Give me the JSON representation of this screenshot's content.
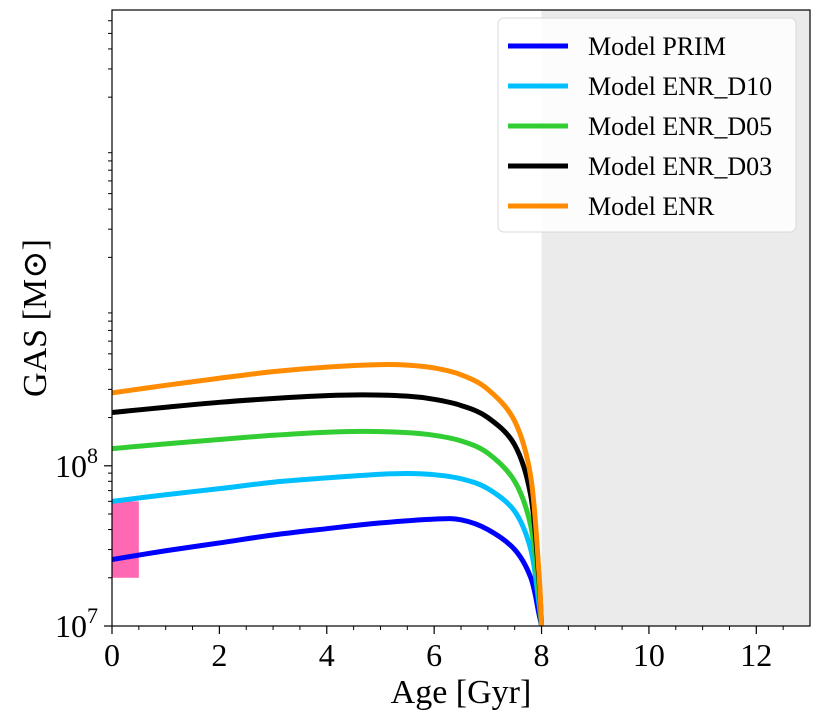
{
  "chart_data": {
    "type": "line",
    "title": "",
    "xlabel": "Age [Gyr]",
    "ylabel": "GAS [M⊙]",
    "yscale": "log",
    "xlim": [
      0,
      13
    ],
    "ylim": [
      10000000,
      70000000000
    ],
    "x_ticks": [
      0,
      2,
      4,
      6,
      8,
      10,
      12
    ],
    "x_tick_labels": [
      "0",
      "2",
      "4",
      "6",
      "8",
      "10",
      "12"
    ],
    "y_ticks": [
      {
        "value": 10000000,
        "base": "10",
        "exp": "7"
      },
      {
        "value": 100000000,
        "base": "10",
        "exp": "8"
      }
    ],
    "legend_position": "top-right",
    "shaded_region": {
      "x_start": 8,
      "x_end": 13,
      "color": "#ebebeb"
    },
    "observed_range": {
      "x_start": 0,
      "x_end": 0.5,
      "y_low": 20000000,
      "y_high": 60000000,
      "color": "#ff69b4"
    },
    "series": [
      {
        "name": "Model PRIM",
        "color": "#0000ff",
        "points": [
          [
            0,
            26000000
          ],
          [
            1,
            29500000
          ],
          [
            2,
            33000000
          ],
          [
            3,
            37000000
          ],
          [
            4,
            40500000
          ],
          [
            5,
            44000000
          ],
          [
            6,
            46500000
          ],
          [
            6.5,
            46000000
          ],
          [
            7,
            40000000
          ],
          [
            7.5,
            30000000
          ],
          [
            7.8,
            20000000
          ],
          [
            7.95,
            12000000
          ],
          [
            8.0,
            10000000
          ]
        ]
      },
      {
        "name": "Model ENR_D10",
        "color": "#00bfff",
        "points": [
          [
            0,
            60000000
          ],
          [
            1,
            66000000
          ],
          [
            2,
            72000000
          ],
          [
            3,
            79000000
          ],
          [
            4,
            84000000
          ],
          [
            5,
            88500000
          ],
          [
            5.5,
            89500000
          ],
          [
            6,
            88000000
          ],
          [
            6.5,
            83000000
          ],
          [
            7,
            72000000
          ],
          [
            7.5,
            52000000
          ],
          [
            7.8,
            30000000
          ],
          [
            7.95,
            14000000
          ],
          [
            8.0,
            10000000
          ]
        ]
      },
      {
        "name": "Model ENR_D05",
        "color": "#32cd32",
        "points": [
          [
            0,
            128000000
          ],
          [
            1,
            137000000
          ],
          [
            2,
            146000000
          ],
          [
            3,
            155000000
          ],
          [
            4,
            162000000
          ],
          [
            4.7,
            164000000
          ],
          [
            5.5,
            161000000
          ],
          [
            6,
            155000000
          ],
          [
            6.5,
            143000000
          ],
          [
            7,
            120000000
          ],
          [
            7.5,
            80000000
          ],
          [
            7.8,
            42000000
          ],
          [
            7.95,
            16000000
          ],
          [
            8.0,
            10000000
          ]
        ]
      },
      {
        "name": "Model ENR_D03",
        "color": "#000000",
        "points": [
          [
            0,
            215000000
          ],
          [
            1,
            232000000
          ],
          [
            2,
            249000000
          ],
          [
            3,
            263000000
          ],
          [
            4,
            274000000
          ],
          [
            4.7,
            277000000
          ],
          [
            5.5,
            272000000
          ],
          [
            6,
            260000000
          ],
          [
            6.5,
            238000000
          ],
          [
            7,
            200000000
          ],
          [
            7.5,
            135000000
          ],
          [
            7.8,
            65000000
          ],
          [
            7.95,
            20000000
          ],
          [
            8.0,
            10000000
          ]
        ]
      },
      {
        "name": "Model ENR",
        "color": "#ff8c00",
        "points": [
          [
            0,
            285000000
          ],
          [
            1,
            318000000
          ],
          [
            2,
            352000000
          ],
          [
            3,
            387000000
          ],
          [
            4,
            413000000
          ],
          [
            5,
            428000000
          ],
          [
            5.5,
            425000000
          ],
          [
            6,
            408000000
          ],
          [
            6.5,
            370000000
          ],
          [
            7,
            300000000
          ],
          [
            7.5,
            190000000
          ],
          [
            7.8,
            85000000
          ],
          [
            7.95,
            22000000
          ],
          [
            8.0,
            10000000
          ]
        ]
      }
    ]
  }
}
